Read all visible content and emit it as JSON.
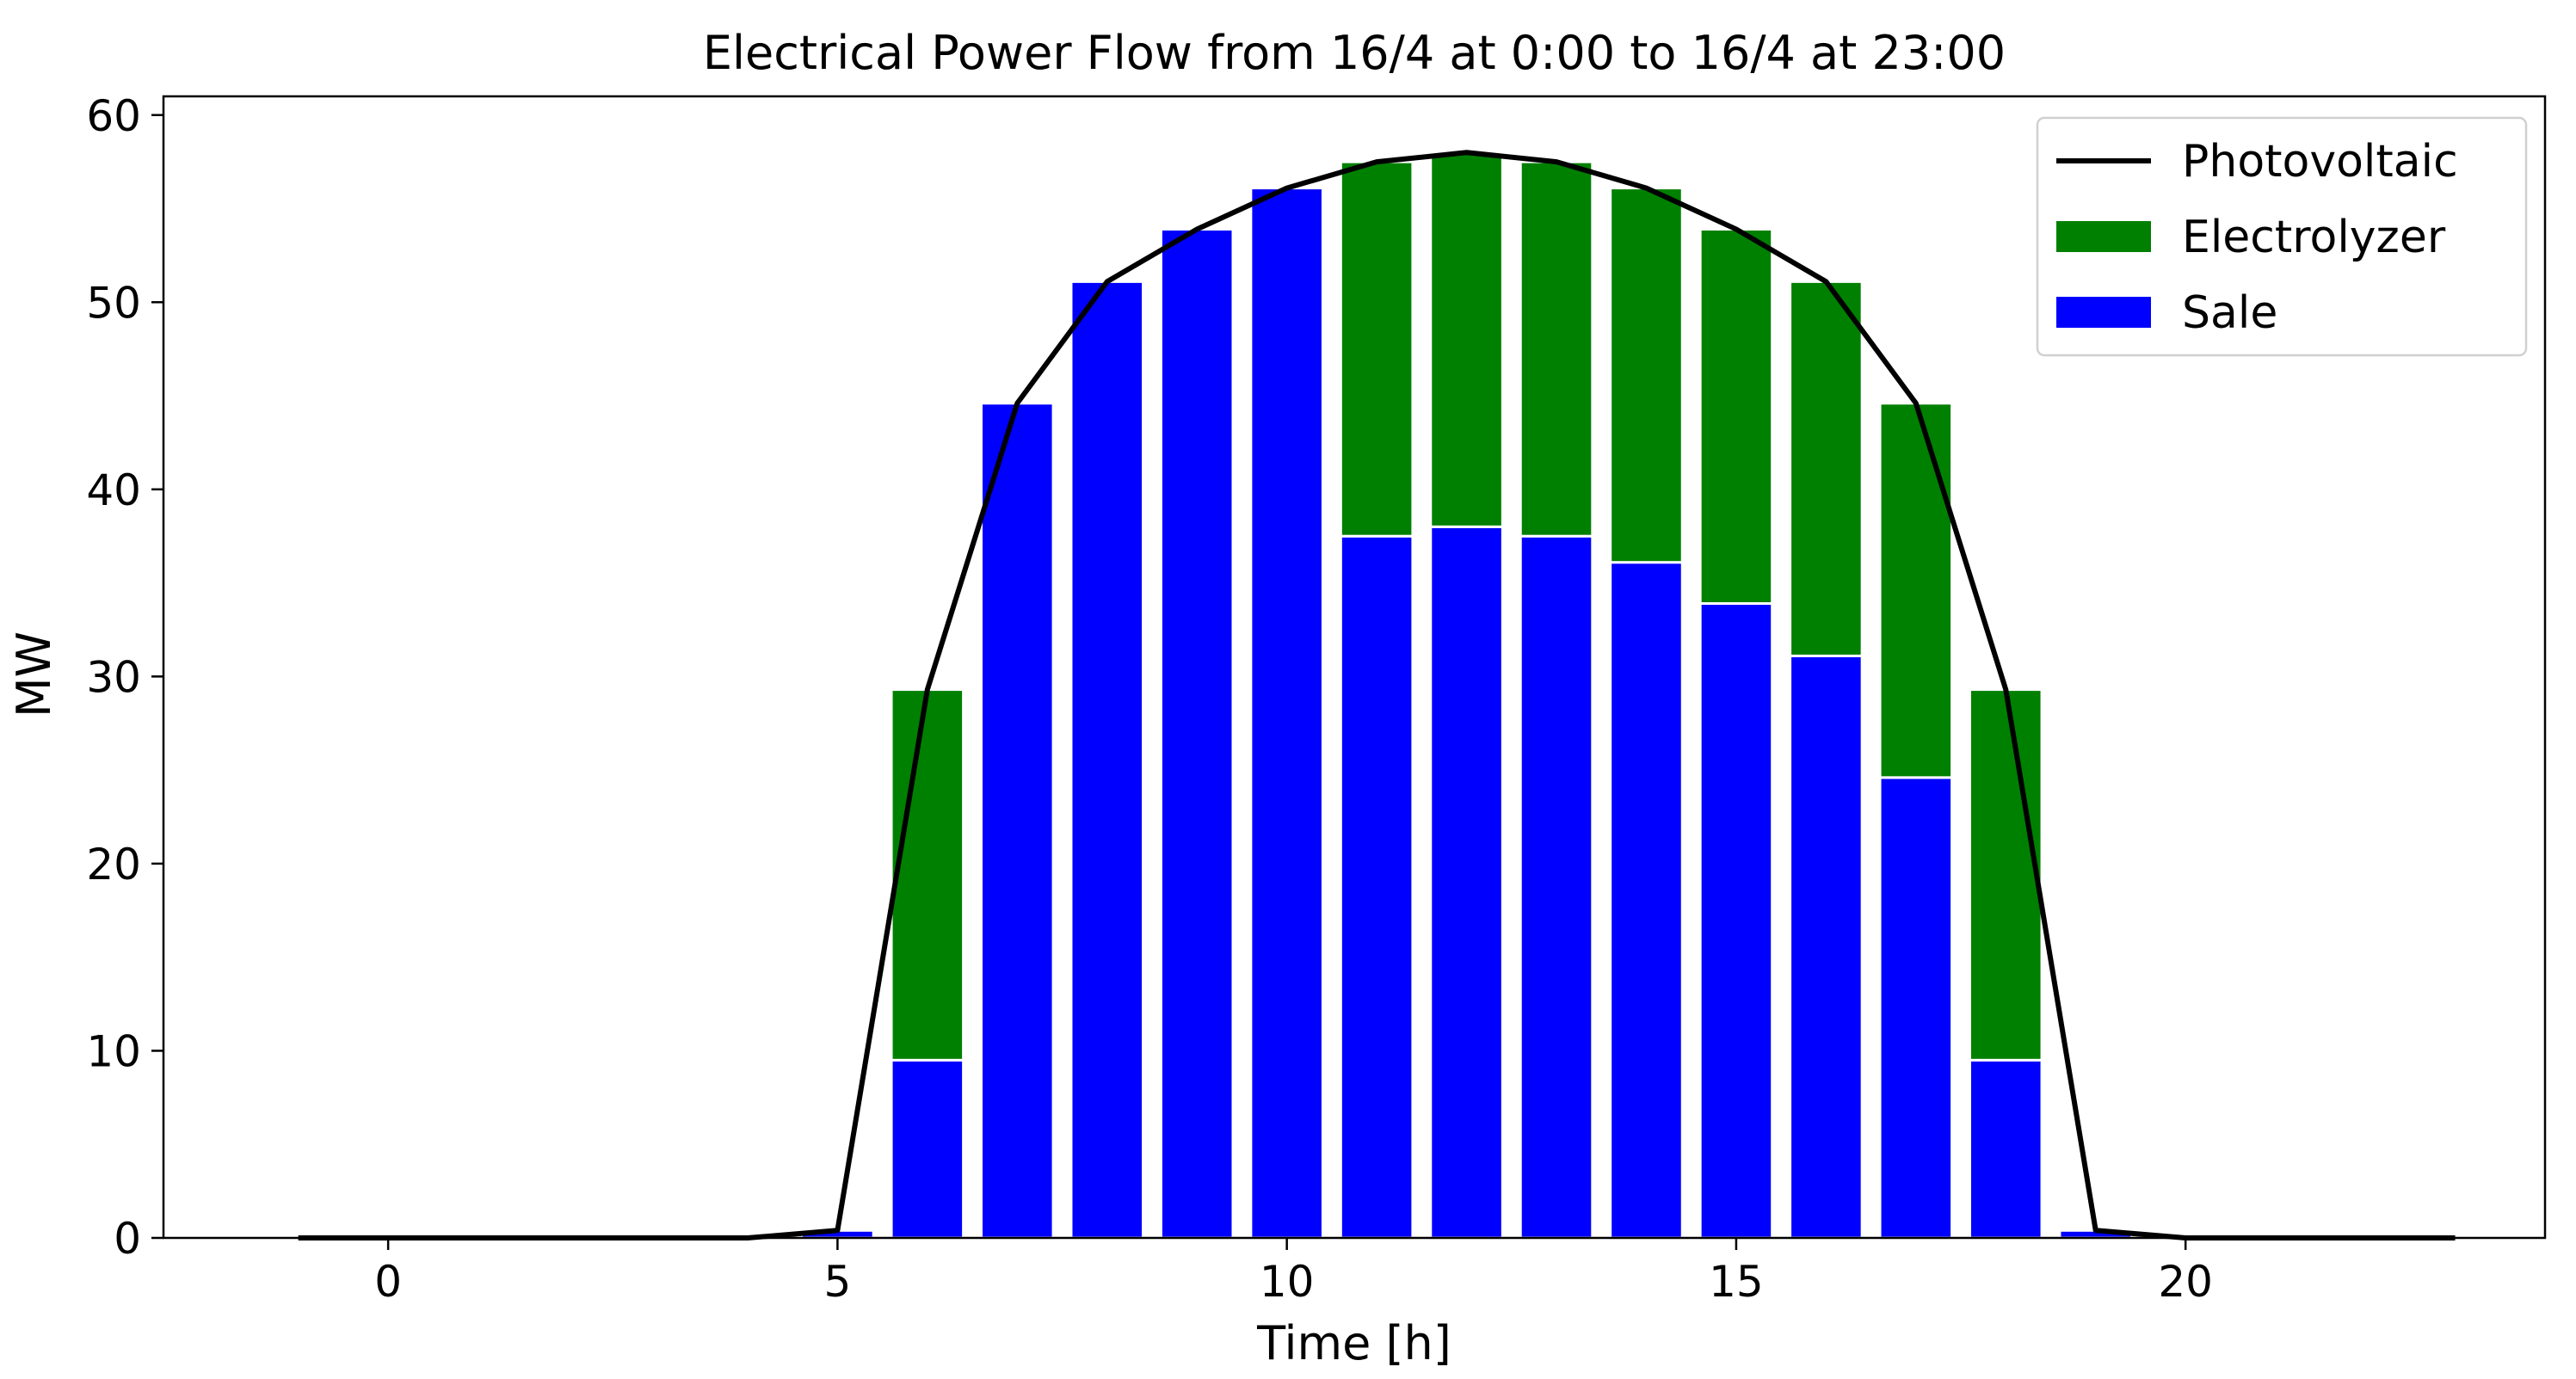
{
  "chart_data": {
    "type": "bar",
    "title": "Electrical Power Flow from 16/4 at 0:00 to 16/4 at 23:00",
    "xlabel": "Time [h]",
    "ylabel": "MW",
    "xlim": [
      -2.5,
      24.0
    ],
    "ylim": [
      0,
      61
    ],
    "xticks": [
      0,
      5,
      10,
      15,
      20
    ],
    "yticks": [
      0,
      10,
      20,
      30,
      40,
      50,
      60
    ],
    "x": [
      -1,
      0,
      1,
      2,
      3,
      4,
      5,
      6,
      7,
      8,
      9,
      10,
      11,
      12,
      13,
      14,
      15,
      16,
      17,
      18,
      19,
      20,
      21,
      22,
      23
    ],
    "grid": false,
    "legend_position": "top-right",
    "series": [
      {
        "name": "Photovoltaic",
        "kind": "line",
        "color": "#000000",
        "values": [
          0,
          0,
          0,
          0,
          0,
          0,
          0.4,
          29.3,
          44.6,
          51.1,
          53.9,
          56.1,
          57.5,
          58.0,
          57.5,
          56.1,
          53.9,
          51.1,
          44.6,
          29.3,
          0.4,
          0,
          0,
          0,
          0
        ]
      },
      {
        "name": "Electrolyzer",
        "kind": "bar",
        "color": "#008000",
        "values": [
          0,
          0,
          0,
          0,
          0,
          0,
          0,
          19.8,
          0,
          0,
          0,
          0,
          20.0,
          20.0,
          20.0,
          20.0,
          20.0,
          20.0,
          20.0,
          19.8,
          0,
          0,
          0,
          0,
          0
        ]
      },
      {
        "name": "Sale",
        "kind": "bar",
        "color": "#0000ff",
        "values": [
          0,
          0,
          0,
          0,
          0,
          0,
          0.4,
          9.5,
          44.6,
          51.1,
          53.9,
          56.1,
          37.5,
          38.0,
          37.5,
          36.1,
          33.9,
          31.1,
          24.6,
          9.5,
          0.4,
          0,
          0,
          0,
          0
        ]
      }
    ]
  }
}
